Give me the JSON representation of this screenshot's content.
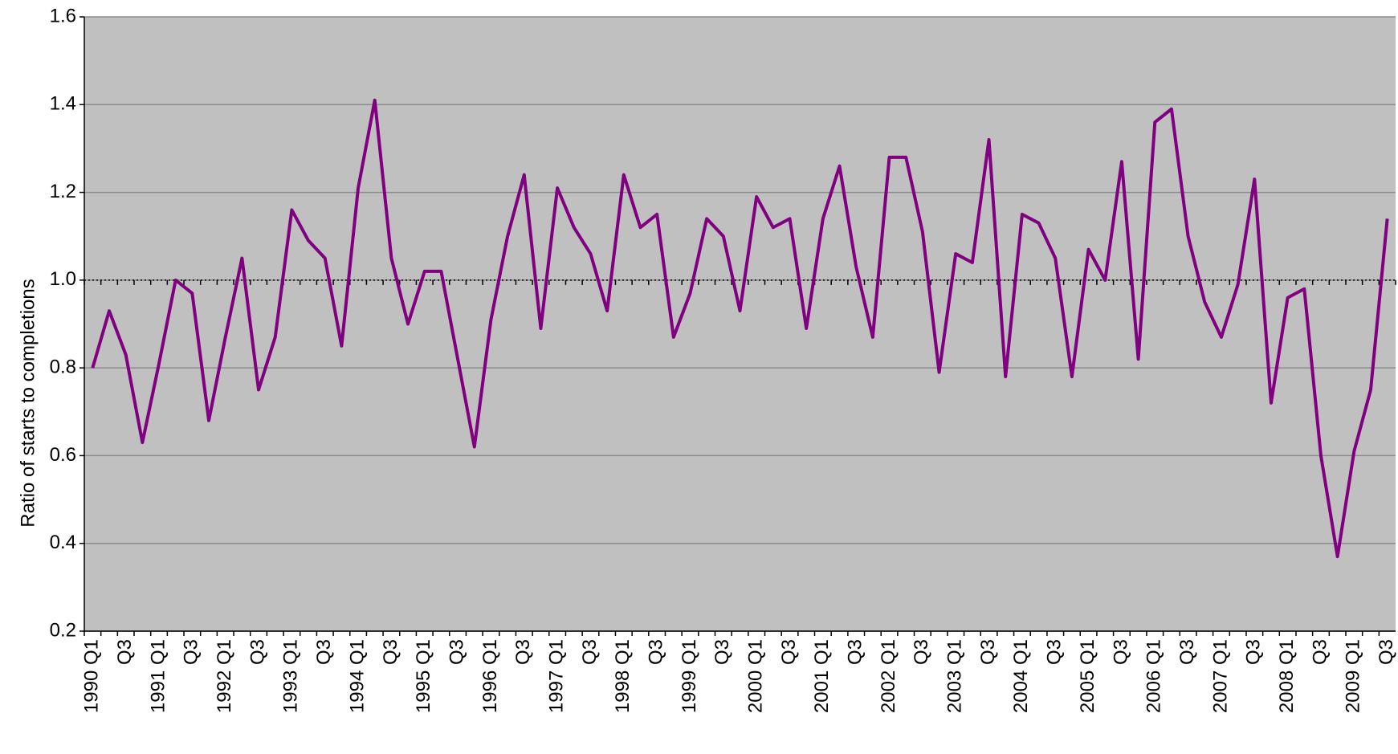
{
  "chart_data": {
    "type": "line",
    "y_label": "Ratio of starts to completions",
    "categories": [
      "1990 Q1",
      null,
      "Q3",
      null,
      "1991 Q1",
      null,
      "Q3",
      null,
      "1992 Q1",
      null,
      "Q3",
      null,
      "1993 Q1",
      null,
      "Q3",
      null,
      "1994 Q1",
      null,
      "Q3",
      null,
      "1995 Q1",
      null,
      "Q3",
      null,
      "1996 Q1",
      null,
      "Q3",
      null,
      "1997 Q1",
      null,
      "Q3",
      null,
      "1998 Q1",
      null,
      "Q3",
      null,
      "1999 Q1",
      null,
      "Q3",
      null,
      "2000 Q1",
      null,
      "Q3",
      null,
      "2001 Q1",
      null,
      "Q3",
      null,
      "2002 Q1",
      null,
      "Q3",
      null,
      "2003 Q1",
      null,
      "Q3",
      null,
      "2004 Q1",
      null,
      "Q3",
      null,
      "2005 Q1",
      null,
      "Q3",
      null,
      "2006 Q1",
      null,
      "Q3",
      null,
      "2007 Q1",
      null,
      "Q3",
      null,
      "2008 Q1",
      null,
      "Q3",
      null,
      "2009 Q1",
      null,
      "Q3"
    ],
    "series": [
      {
        "color": "#800080",
        "values": [
          0.8,
          0.93,
          0.83,
          0.63,
          0.81,
          1.0,
          0.97,
          0.68,
          0.87,
          1.05,
          0.75,
          0.87,
          1.16,
          1.09,
          1.05,
          0.85,
          1.21,
          1.41,
          1.05,
          0.9,
          1.02,
          1.02,
          0.82,
          0.62,
          0.91,
          1.1,
          1.24,
          0.89,
          1.21,
          1.12,
          1.06,
          0.93,
          1.24,
          1.12,
          1.15,
          0.87,
          0.97,
          1.14,
          1.1,
          0.93,
          1.19,
          1.12,
          1.14,
          0.89,
          1.14,
          1.26,
          1.03,
          0.87,
          1.28,
          1.28,
          1.11,
          0.79,
          1.06,
          1.04,
          1.32,
          0.78,
          1.15,
          1.13,
          1.05,
          0.78,
          1.07,
          1.0,
          1.27,
          0.82,
          1.36,
          1.39,
          1.1,
          0.95,
          0.87,
          0.99,
          1.23,
          0.72,
          0.96,
          0.98,
          0.6,
          0.37,
          0.61,
          0.75,
          1.14
        ]
      }
    ],
    "ylim": [
      0.2,
      1.6
    ],
    "yticks": [
      0.2,
      0.4,
      0.6,
      0.8,
      {
        "value": 1.0,
        "label": "1.0"
      },
      1.2,
      1.4,
      1.6
    ],
    "reference_line": 1.0,
    "grid": true
  }
}
